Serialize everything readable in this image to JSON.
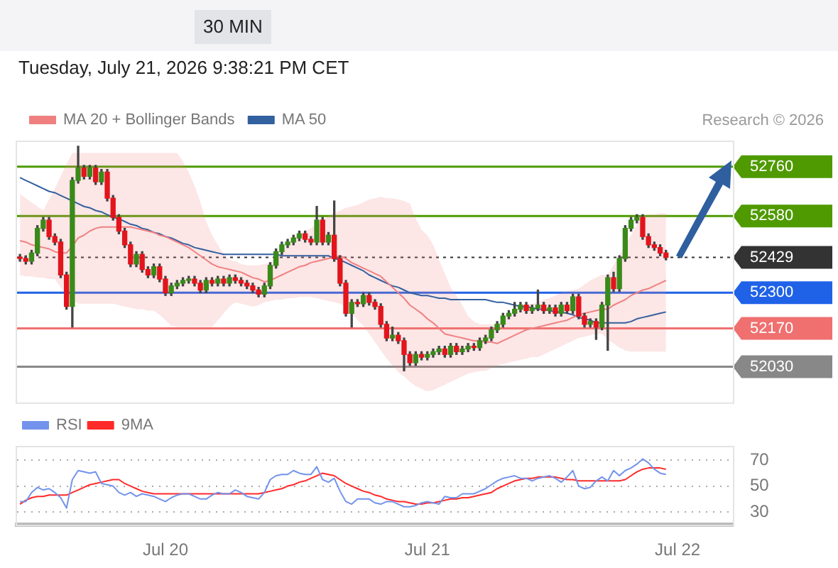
{
  "chart_data": [
    {
      "type": "candlestick",
      "title": "30 MIN",
      "subtitle": "Tuesday, July 21, 2026 9:38:21 PM CET",
      "categories": [
        null,
        null,
        null,
        null,
        null,
        null,
        null,
        null,
        null,
        null,
        null,
        null,
        null,
        null,
        null,
        null,
        null,
        null,
        null,
        null,
        null,
        null,
        null,
        null,
        null,
        null,
        null,
        null,
        null,
        null,
        null,
        null,
        null,
        null,
        null,
        null,
        null,
        null,
        null,
        null,
        null,
        null,
        null,
        null,
        null,
        null,
        null,
        null,
        null,
        null,
        null,
        null,
        null,
        null,
        null,
        null,
        null,
        null,
        null,
        null,
        null,
        null,
        null,
        null,
        null,
        null,
        null,
        null,
        null,
        null,
        null,
        null,
        null,
        null,
        null,
        null,
        null,
        null,
        null,
        null,
        null,
        null,
        null,
        null,
        null,
        null,
        null,
        null,
        null,
        null,
        null,
        null,
        null,
        null,
        null,
        null,
        null,
        null,
        null,
        null,
        null,
        null,
        null,
        null,
        null,
        null,
        null,
        null,
        null,
        null,
        null,
        null,
        null,
        null,
        null,
        null,
        null,
        null,
        null,
        null,
        null,
        null,
        null
      ],
      "ohlc": [
        [
          52430,
          52440,
          52415,
          52425
        ],
        [
          52425,
          52435,
          52405,
          52415
        ],
        [
          52415,
          52455,
          52405,
          52445
        ],
        [
          52445,
          52545,
          52435,
          52535
        ],
        [
          52535,
          52575,
          52525,
          52565
        ],
        [
          52565,
          52575,
          52495,
          52505
        ],
        [
          52505,
          52515,
          52475,
          52485
        ],
        [
          52485,
          52495,
          52355,
          52365
        ],
        [
          52365,
          52375,
          52240,
          52250
        ],
        [
          52250,
          52720,
          52175,
          52710
        ],
        [
          52710,
          52835,
          52700,
          52755
        ],
        [
          52755,
          52765,
          52715,
          52725
        ],
        [
          52725,
          52765,
          52715,
          52755
        ],
        [
          52755,
          52765,
          52695,
          52705
        ],
        [
          52705,
          52750,
          52695,
          52740
        ],
        [
          52740,
          52750,
          52635,
          52645
        ],
        [
          52645,
          52655,
          52565,
          52575
        ],
        [
          52575,
          52585,
          52515,
          52525
        ],
        [
          52525,
          52535,
          52465,
          52475
        ],
        [
          52475,
          52485,
          52395,
          52405
        ],
        [
          52405,
          52450,
          52395,
          52440
        ],
        [
          52440,
          52450,
          52375,
          52385
        ],
        [
          52385,
          52395,
          52355,
          52365
        ],
        [
          52365,
          52405,
          52355,
          52395
        ],
        [
          52395,
          52405,
          52340,
          52350
        ],
        [
          52350,
          52360,
          52290,
          52300
        ],
        [
          52300,
          52335,
          52290,
          52325
        ],
        [
          52325,
          52345,
          52315,
          52335
        ],
        [
          52335,
          52355,
          52325,
          52345
        ],
        [
          52345,
          52360,
          52335,
          52350
        ],
        [
          52350,
          52360,
          52325,
          52335
        ],
        [
          52335,
          52345,
          52300,
          52310
        ],
        [
          52310,
          52355,
          52300,
          52345
        ],
        [
          52345,
          52355,
          52325,
          52335
        ],
        [
          52335,
          52360,
          52325,
          52350
        ],
        [
          52350,
          52360,
          52325,
          52335
        ],
        [
          52335,
          52365,
          52325,
          52355
        ],
        [
          52355,
          52365,
          52335,
          52345
        ],
        [
          52345,
          52355,
          52325,
          52335
        ],
        [
          52335,
          52345,
          52315,
          52325
        ],
        [
          52325,
          52335,
          52300,
          52310
        ],
        [
          52310,
          52320,
          52285,
          52295
        ],
        [
          52295,
          52335,
          52285,
          52325
        ],
        [
          52325,
          52410,
          52315,
          52400
        ],
        [
          52400,
          52460,
          52390,
          52450
        ],
        [
          52450,
          52485,
          52440,
          52475
        ],
        [
          52475,
          52495,
          52465,
          52485
        ],
        [
          52485,
          52510,
          52475,
          52500
        ],
        [
          52500,
          52525,
          52490,
          52515
        ],
        [
          52515,
          52525,
          52485,
          52495
        ],
        [
          52495,
          52505,
          52475,
          52485
        ],
        [
          52485,
          52615,
          52475,
          52565
        ],
        [
          52565,
          52575,
          52475,
          52485
        ],
        [
          52485,
          52520,
          52475,
          52510
        ],
        [
          52510,
          52635,
          52415,
          52425
        ],
        [
          52425,
          52435,
          52325,
          52335
        ],
        [
          52335,
          52345,
          52215,
          52225
        ],
        [
          52225,
          52275,
          52175,
          52265
        ],
        [
          52265,
          52275,
          52250,
          52260
        ],
        [
          52260,
          52300,
          52250,
          52290
        ],
        [
          52290,
          52300,
          52255,
          52265
        ],
        [
          52265,
          52275,
          52240,
          52250
        ],
        [
          52250,
          52260,
          52175,
          52185
        ],
        [
          52185,
          52195,
          52125,
          52135
        ],
        [
          52135,
          52175,
          52125,
          52145
        ],
        [
          52145,
          52155,
          52115,
          52125
        ],
        [
          52125,
          52135,
          52015,
          52075
        ],
        [
          52075,
          52085,
          52035,
          52045
        ],
        [
          52045,
          52085,
          52035,
          52075
        ],
        [
          52075,
          52085,
          52055,
          52065
        ],
        [
          52065,
          52085,
          52055,
          52075
        ],
        [
          52075,
          52095,
          52065,
          52085
        ],
        [
          52085,
          52105,
          52075,
          52095
        ],
        [
          52095,
          52105,
          52065,
          52075
        ],
        [
          52075,
          52115,
          52065,
          52105
        ],
        [
          52105,
          52115,
          52075,
          52085
        ],
        [
          52085,
          52105,
          52075,
          52095
        ],
        [
          52095,
          52115,
          52085,
          52105
        ],
        [
          52105,
          52115,
          52090,
          52100
        ],
        [
          52100,
          52135,
          52090,
          52125
        ],
        [
          52125,
          52145,
          52115,
          52135
        ],
        [
          52135,
          52175,
          52125,
          52165
        ],
        [
          52165,
          52195,
          52155,
          52185
        ],
        [
          52185,
          52225,
          52175,
          52215
        ],
        [
          52215,
          52235,
          52205,
          52225
        ],
        [
          52225,
          52265,
          52215,
          52240
        ],
        [
          52240,
          52265,
          52230,
          52255
        ],
        [
          52255,
          52265,
          52225,
          52235
        ],
        [
          52235,
          52255,
          52225,
          52245
        ],
        [
          52245,
          52310,
          52235,
          52255
        ],
        [
          52255,
          52265,
          52225,
          52235
        ],
        [
          52235,
          52255,
          52225,
          52245
        ],
        [
          52245,
          52255,
          52215,
          52225
        ],
        [
          52225,
          52265,
          52215,
          52255
        ],
        [
          52255,
          52265,
          52225,
          52235
        ],
        [
          52235,
          52295,
          52225,
          52285
        ],
        [
          52285,
          52295,
          52205,
          52215
        ],
        [
          52215,
          52225,
          52175,
          52185
        ],
        [
          52185,
          52205,
          52175,
          52195
        ],
        [
          52195,
          52205,
          52130,
          52175
        ],
        [
          52175,
          52265,
          52165,
          52255
        ],
        [
          52255,
          52365,
          52090,
          52355
        ],
        [
          52355,
          52375,
          52305,
          52315
        ],
        [
          52315,
          52435,
          52305,
          52425
        ],
        [
          52425,
          52545,
          52415,
          52535
        ],
        [
          52535,
          52575,
          52525,
          52565
        ],
        [
          52565,
          52585,
          52555,
          52575
        ],
        [
          52575,
          52585,
          52495,
          52505
        ],
        [
          52505,
          52515,
          52465,
          52475
        ],
        [
          52475,
          52485,
          52455,
          52465
        ],
        [
          52465,
          52475,
          52435,
          52445
        ],
        [
          52445,
          52455,
          52420,
          52429
        ],
        null,
        null,
        null,
        null,
        null,
        null,
        null,
        null,
        null,
        null,
        null
      ],
      "series": [
        {
          "name": "MA 20 + Bollinger Bands",
          "type": "line",
          "color": "#f08080",
          "values": [
            52490,
            52485,
            52475,
            52470,
            52465,
            52460,
            52450,
            52445,
            52445,
            52470,
            52500,
            52510,
            52525,
            52535,
            52540,
            52540,
            52540,
            52540,
            52540,
            52540,
            52535,
            52530,
            52525,
            52520,
            52510,
            52505,
            52495,
            52485,
            52475,
            52465,
            52450,
            52435,
            52420,
            52405,
            52395,
            52390,
            52385,
            52380,
            52375,
            52365,
            52355,
            52350,
            52340,
            52345,
            52355,
            52365,
            52375,
            52385,
            52395,
            52400,
            52410,
            52415,
            52420,
            52425,
            52430,
            52435,
            52425,
            52410,
            52400,
            52390,
            52380,
            52370,
            52360,
            52340,
            52320,
            52300,
            52280,
            52255,
            52240,
            52225,
            52205,
            52190,
            52170,
            52150,
            52145,
            52140,
            52135,
            52130,
            52125,
            52125,
            52120,
            52120,
            52115,
            52125,
            52135,
            52145,
            52155,
            52165,
            52170,
            52175,
            52180,
            52185,
            52190,
            52195,
            52200,
            52210,
            52220,
            52225,
            52230,
            52235,
            52240,
            52240,
            52255,
            52265,
            52275,
            52290,
            52300,
            52310,
            52315,
            52325,
            52335,
            52345,
            null,
            null,
            null,
            null,
            null,
            null,
            null,
            null,
            null,
            null,
            null
          ],
          "upper": [
            52660,
            52645,
            52630,
            52615,
            52600,
            52640,
            52680,
            52725,
            52770,
            52810,
            52810,
            52810,
            52810,
            52810,
            52810,
            52810,
            52810,
            52810,
            52810,
            52810,
            52810,
            52810,
            52810,
            52810,
            52810,
            52810,
            52810,
            52810,
            52780,
            52740,
            52690,
            52630,
            52560,
            52510,
            52475,
            52440,
            52420,
            52415,
            52405,
            52400,
            52400,
            52400,
            52405,
            52410,
            52430,
            52450,
            52475,
            52500,
            52515,
            52525,
            52535,
            52550,
            52565,
            52580,
            52590,
            52600,
            52610,
            52615,
            52620,
            52630,
            52640,
            52645,
            52650,
            52645,
            52645,
            52640,
            52635,
            52625,
            52570,
            52530,
            52510,
            52475,
            52420,
            52370,
            52320,
            52290,
            52255,
            52215,
            52195,
            52185,
            52185,
            52185,
            52185,
            52200,
            52215,
            52230,
            52245,
            52255,
            52260,
            52265,
            52275,
            52280,
            52290,
            52300,
            52305,
            52310,
            52315,
            52330,
            52345,
            52355,
            52365,
            52365,
            52400,
            52440,
            52475,
            52510,
            52550,
            52580,
            52585,
            52585,
            52590,
            52590,
            null,
            null,
            null,
            null,
            null,
            null,
            null,
            null,
            null,
            null,
            null
          ],
          "lower": [
            52365,
            52360,
            52360,
            52355,
            52355,
            52350,
            52350,
            52320,
            52290,
            52275,
            52260,
            52260,
            52260,
            52260,
            52260,
            52260,
            52260,
            52255,
            52250,
            52245,
            52240,
            52240,
            52235,
            52235,
            52220,
            52200,
            52180,
            52175,
            52175,
            52175,
            52175,
            52175,
            52175,
            52175,
            52200,
            52225,
            52250,
            52265,
            52260,
            52255,
            52250,
            52255,
            52265,
            52270,
            52275,
            52275,
            52280,
            52280,
            52285,
            52285,
            52285,
            52280,
            52275,
            52270,
            52265,
            52260,
            52250,
            52225,
            52200,
            52180,
            52150,
            52120,
            52090,
            52060,
            52035,
            52010,
            51995,
            51975,
            51960,
            51950,
            51940,
            51945,
            51955,
            51965,
            51975,
            51985,
            51995,
            52005,
            52010,
            52015,
            52015,
            52025,
            52035,
            52040,
            52045,
            52050,
            52055,
            52060,
            52065,
            52065,
            52075,
            52085,
            52095,
            52105,
            52115,
            52125,
            52135,
            52140,
            52145,
            52150,
            52150,
            52130,
            52115,
            52100,
            52090,
            52085,
            52085,
            52085,
            52085,
            52085,
            52085,
            52085,
            null,
            null,
            null,
            null,
            null,
            null,
            null,
            null,
            null,
            null,
            null
          ]
        },
        {
          "name": "MA 50",
          "type": "line",
          "color": "#33609f",
          "values": [
            52720,
            52710,
            52700,
            52690,
            52680,
            52670,
            52665,
            52655,
            52645,
            52635,
            52625,
            52615,
            52610,
            52600,
            52595,
            52585,
            52575,
            52570,
            52560,
            52550,
            52545,
            52535,
            52530,
            52520,
            52515,
            52505,
            52500,
            52490,
            52480,
            52475,
            52465,
            52460,
            52455,
            52450,
            52445,
            52440,
            52440,
            52440,
            52440,
            52440,
            52440,
            52440,
            52440,
            52440,
            52440,
            52435,
            52435,
            52435,
            52435,
            52435,
            52435,
            52435,
            52435,
            52435,
            52425,
            52420,
            52410,
            52400,
            52390,
            52380,
            52365,
            52355,
            52345,
            52335,
            52325,
            52320,
            52310,
            52300,
            52295,
            52290,
            52290,
            52285,
            52280,
            52280,
            52275,
            52275,
            52275,
            52275,
            52275,
            52275,
            52275,
            52270,
            52265,
            52265,
            52260,
            52255,
            52250,
            52250,
            52245,
            52240,
            52240,
            52235,
            52230,
            52230,
            52225,
            52220,
            52210,
            52205,
            52200,
            52190,
            52190,
            52190,
            52190,
            52190,
            52190,
            52195,
            52205,
            52210,
            52215,
            52220,
            52225,
            52230,
            null,
            null,
            null,
            null,
            null,
            null,
            null,
            null,
            null,
            null,
            null
          ]
        }
      ],
      "ylim": [
        51900,
        52850
      ],
      "yticks": [
        52030,
        52170,
        52300,
        52429,
        52580,
        52760
      ],
      "ref_lines": [
        {
          "axis": "y",
          "value": 52760,
          "color": "#4f9a00"
        },
        {
          "axis": "y",
          "value": 52580,
          "color": "#4f9a00"
        },
        {
          "axis": "y",
          "value": 52429,
          "color": "#333333",
          "line_style": "dotted"
        },
        {
          "axis": "y",
          "value": 52300,
          "color": "#1f62e8"
        },
        {
          "axis": "y",
          "value": 52170,
          "color": "#f07070"
        },
        {
          "axis": "y",
          "value": 52030,
          "color": "#888888"
        }
      ],
      "legend": "top left",
      "tick_labels": "y",
      "marker": "none",
      "annotations": [
        "Research © 2026"
      ]
    },
    {
      "type": "line",
      "categories": [
        null,
        null,
        null,
        null,
        null,
        null,
        null,
        null,
        null,
        null,
        null,
        null,
        null,
        null,
        null,
        null,
        null,
        null,
        null,
        null,
        null,
        null,
        null,
        null,
        null,
        "Jul 20",
        null,
        null,
        null,
        null,
        null,
        null,
        null,
        null,
        null,
        null,
        null,
        null,
        null,
        null,
        null,
        null,
        null,
        null,
        null,
        null,
        null,
        null,
        null,
        null,
        null,
        null,
        null,
        null,
        null,
        null,
        null,
        null,
        null,
        null,
        null,
        null,
        null,
        null,
        null,
        null,
        null,
        null,
        null,
        null,
        "Jul 21",
        null,
        null,
        null,
        null,
        null,
        null,
        null,
        null,
        null,
        null,
        null,
        null,
        null,
        null,
        null,
        null,
        null,
        null,
        null,
        null,
        null,
        null,
        null,
        null,
        null,
        null,
        null,
        null,
        null,
        null,
        null,
        null,
        null,
        null,
        null,
        null,
        null,
        null,
        null,
        null,
        null,
        null,
        "Jul 22",
        null,
        null,
        null,
        null,
        null,
        null,
        null,
        null,
        null
      ],
      "series": [
        {
          "name": "RSI",
          "color": "#7393ec",
          "values": [
            38,
            38,
            45,
            49,
            47,
            48,
            45,
            41,
            33,
            55,
            62,
            61,
            60,
            61,
            52,
            51,
            50,
            45,
            43,
            45,
            42,
            44,
            43,
            42,
            40,
            38,
            41,
            43,
            44,
            44,
            42,
            40,
            40,
            43,
            45,
            44,
            44,
            47,
            45,
            42,
            41,
            40,
            45,
            55,
            58,
            59,
            59,
            62,
            60,
            59,
            59,
            65,
            55,
            53,
            56,
            46,
            38,
            36,
            40,
            40,
            40,
            37,
            36,
            38,
            38,
            36,
            34,
            34,
            35,
            37,
            38,
            37,
            36,
            42,
            41,
            41,
            44,
            44,
            44,
            46,
            48,
            51,
            54,
            56,
            57,
            58,
            56,
            56,
            54,
            56,
            57,
            58,
            56,
            53,
            57,
            62,
            50,
            48,
            49,
            54,
            57,
            54,
            62,
            58,
            62,
            64,
            67,
            71,
            68,
            63,
            60,
            59,
            null,
            null,
            null,
            null,
            null,
            null,
            null,
            null,
            null,
            null,
            null
          ]
        },
        {
          "name": "9MA",
          "color": "#ff2a2a",
          "values": [
            36,
            39,
            41,
            42,
            42,
            43,
            43,
            43,
            43,
            45,
            47,
            49,
            51,
            52,
            53,
            54,
            55,
            55,
            52,
            50,
            48,
            46,
            45,
            44,
            44,
            44,
            44,
            44,
            44,
            44,
            44,
            44,
            44,
            44,
            44,
            44,
            44,
            44,
            44,
            44,
            44,
            44,
            45,
            46,
            47,
            48,
            50,
            51,
            53,
            54,
            56,
            58,
            60,
            59,
            58,
            55,
            52,
            50,
            48,
            46,
            45,
            43,
            42,
            40,
            39,
            38,
            38,
            37,
            36,
            36,
            37,
            37,
            38,
            39,
            40,
            40,
            41,
            41,
            42,
            43,
            44,
            45,
            48,
            50,
            52,
            54,
            55,
            56,
            56,
            57,
            57,
            57,
            57,
            56,
            55,
            55,
            54,
            54,
            54,
            54,
            54,
            54,
            54,
            54,
            55,
            58,
            61,
            63,
            64,
            64,
            64,
            63,
            null,
            null,
            null,
            null,
            null,
            null,
            null,
            null,
            null,
            null,
            null
          ]
        }
      ],
      "ylim": [
        20,
        80
      ],
      "yticks": [
        30,
        50,
        70
      ],
      "grid": "y",
      "legend": "top left",
      "marker": "none"
    }
  ]
}
